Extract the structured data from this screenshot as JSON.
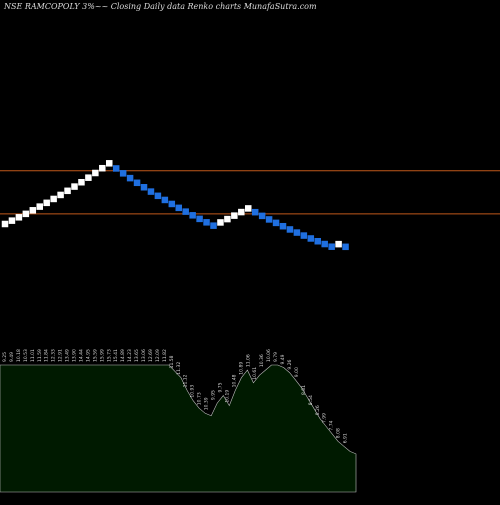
{
  "header": {
    "title": "NSE RAMCOPOLY 3%~~ Closing Daily data  Renko  charts MunafaSutra.com"
  },
  "colors": {
    "background": "#000000",
    "up_brick": "#ffffff",
    "down_brick": "#1f6fe0",
    "reference_line": "#c0581a",
    "volume_fill": "#001a00",
    "volume_stroke": "#bfbfbf",
    "label_text": "#d8d8d8"
  },
  "chart_data": {
    "type": "renko",
    "title": "NSE RAMCOPOLY 3%~~ Closing Daily data  Renko  charts MunafaSutra.com",
    "brick_size": "3%",
    "reference_lines": [
      14.58,
      10.71
    ],
    "ylim": [
      4.5,
      19.5
    ],
    "bricks": [
      {
        "dir": "up",
        "value": 9.8
      },
      {
        "dir": "up",
        "value": 10.1
      },
      {
        "dir": "up",
        "value": 10.4
      },
      {
        "dir": "up",
        "value": 10.71
      },
      {
        "dir": "up",
        "value": 11.03
      },
      {
        "dir": "up",
        "value": 11.36
      },
      {
        "dir": "up",
        "value": 11.7
      },
      {
        "dir": "up",
        "value": 12.05
      },
      {
        "dir": "up",
        "value": 12.41
      },
      {
        "dir": "up",
        "value": 12.78
      },
      {
        "dir": "up",
        "value": 13.16
      },
      {
        "dir": "up",
        "value": 13.55
      },
      {
        "dir": "up",
        "value": 13.96
      },
      {
        "dir": "up",
        "value": 14.38
      },
      {
        "dir": "up",
        "value": 14.81
      },
      {
        "dir": "up",
        "value": 15.25
      },
      {
        "dir": "down",
        "value": 14.79
      },
      {
        "dir": "down",
        "value": 14.35
      },
      {
        "dir": "down",
        "value": 13.92
      },
      {
        "dir": "down",
        "value": 13.5
      },
      {
        "dir": "down",
        "value": 13.1
      },
      {
        "dir": "down",
        "value": 12.71
      },
      {
        "dir": "down",
        "value": 12.33
      },
      {
        "dir": "down",
        "value": 11.96
      },
      {
        "dir": "down",
        "value": 11.6
      },
      {
        "dir": "down",
        "value": 11.25
      },
      {
        "dir": "down",
        "value": 10.91
      },
      {
        "dir": "down",
        "value": 10.58
      },
      {
        "dir": "down",
        "value": 10.26
      },
      {
        "dir": "down",
        "value": 9.95
      },
      {
        "dir": "down",
        "value": 9.65
      },
      {
        "dir": "up",
        "value": 9.94
      },
      {
        "dir": "up",
        "value": 10.24
      },
      {
        "dir": "up",
        "value": 10.55
      },
      {
        "dir": "up",
        "value": 10.87
      },
      {
        "dir": "up",
        "value": 11.2
      },
      {
        "dir": "down",
        "value": 10.86
      },
      {
        "dir": "down",
        "value": 10.53
      },
      {
        "dir": "down",
        "value": 10.21
      },
      {
        "dir": "down",
        "value": 9.9
      },
      {
        "dir": "down",
        "value": 9.6
      },
      {
        "dir": "down",
        "value": 9.31
      },
      {
        "dir": "down",
        "value": 9.03
      },
      {
        "dir": "down",
        "value": 8.76
      },
      {
        "dir": "down",
        "value": 8.5
      },
      {
        "dir": "down",
        "value": 8.25
      },
      {
        "dir": "down",
        "value": 8.0
      },
      {
        "dir": "down",
        "value": 7.76
      },
      {
        "dir": "up",
        "value": 7.99
      },
      {
        "dir": "down",
        "value": 7.75
      }
    ],
    "value_labels": [
      "9.25",
      "9.49",
      "10.18",
      "10.53",
      "11.01",
      "11.59",
      "11.84",
      "12.33",
      "12.91",
      "13.49",
      "13.90",
      "14.44",
      "14.95",
      "15.59",
      "15.99",
      "15.73",
      "15.41",
      "14.89",
      "14.23",
      "13.65",
      "13.06",
      "12.69",
      "12.09",
      "11.82",
      "11.58",
      "11.32",
      "11.12",
      "10.93",
      "10.73",
      "10.39",
      "9.95",
      "9.75",
      "10.19",
      "10.48",
      "10.89",
      "11.06",
      "10.61",
      "10.36",
      "10.06",
      "9.79",
      "9.49",
      "9.26",
      "9.00",
      "8.81",
      "8.54",
      "8.26",
      "7.99",
      "7.74",
      "8.08",
      "6.91"
    ],
    "volume_levels": [
      1.0,
      1.0,
      1.0,
      1.0,
      1.0,
      1.0,
      1.0,
      1.0,
      1.0,
      1.0,
      1.0,
      1.0,
      1.0,
      1.0,
      1.0,
      1.0,
      1.0,
      1.0,
      1.0,
      1.0,
      1.0,
      1.0,
      1.0,
      1.0,
      1.0,
      1.0,
      1.0,
      1.0,
      1.0,
      0.95,
      0.9,
      0.8,
      0.72,
      0.66,
      0.62,
      0.6,
      0.7,
      0.76,
      0.68,
      0.8,
      0.9,
      0.96,
      0.86,
      0.92,
      0.96,
      1.0,
      1.0,
      0.98,
      0.94,
      0.88,
      0.82,
      0.74,
      0.66,
      0.58,
      0.52,
      0.46,
      0.4,
      0.36,
      0.32,
      0.3
    ]
  }
}
